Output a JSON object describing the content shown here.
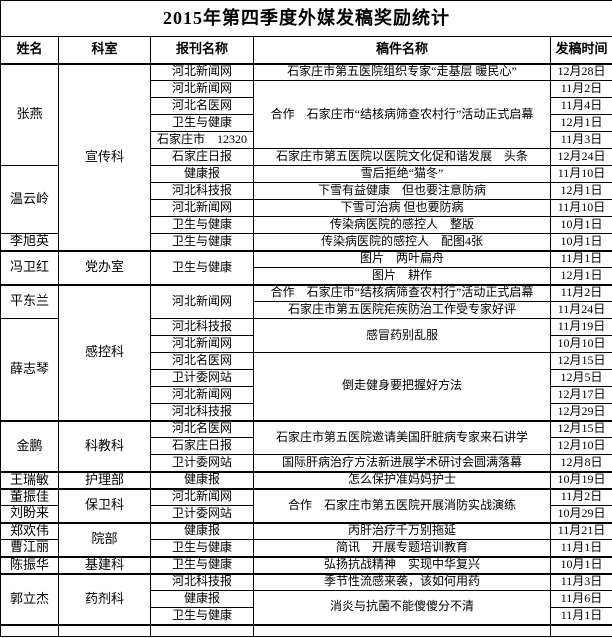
{
  "title": "2015年第四季度外媒发稿奖励统计",
  "table": {
    "columns": [
      {
        "key": "name",
        "label": "姓名"
      },
      {
        "key": "dept",
        "label": "科室"
      },
      {
        "key": "publication",
        "label": "报刊名称"
      },
      {
        "key": "article",
        "label": "稿件名称"
      },
      {
        "key": "date",
        "label": "发稿时间"
      }
    ],
    "rows": [
      {
        "group_start": true,
        "cells": [
          {
            "c": 0,
            "t": "张燕",
            "rs": 6
          },
          {
            "c": 1,
            "t": "宣传科",
            "rs": 11
          },
          {
            "c": 2,
            "t": "河北新闻网"
          },
          {
            "c": 3,
            "t": "石家庄市第五医院组织专家“走基层 暖民心”"
          },
          {
            "c": 4,
            "t": "12月28日"
          }
        ]
      },
      {
        "cells": [
          {
            "c": 2,
            "t": "河北新闻网"
          },
          {
            "c": 3,
            "t": "合作　石家庄市“结核病筛查农村行”活动正式启幕",
            "rs": 4
          },
          {
            "c": 4,
            "t": "11月2日"
          }
        ]
      },
      {
        "cells": [
          {
            "c": 2,
            "t": "河北名医网"
          },
          {
            "c": 4,
            "t": "11月4日"
          }
        ]
      },
      {
        "cells": [
          {
            "c": 2,
            "t": "卫生与健康"
          },
          {
            "c": 4,
            "t": "12月1日"
          }
        ]
      },
      {
        "cells": [
          {
            "c": 2,
            "t": "石家庄市　12320"
          },
          {
            "c": 4,
            "t": "11月3日"
          }
        ]
      },
      {
        "cells": [
          {
            "c": 2,
            "t": "石家庄日报"
          },
          {
            "c": 3,
            "t": "石家庄市第五医院以医院文化促和谐发展　头条"
          },
          {
            "c": 4,
            "t": "12月24日"
          }
        ]
      },
      {
        "cells": [
          {
            "c": 0,
            "t": "温云岭",
            "rs": 4
          },
          {
            "c": 2,
            "t": "健康报"
          },
          {
            "c": 3,
            "t": "雪后拒绝“猫冬”"
          },
          {
            "c": 4,
            "t": "11月10日"
          }
        ]
      },
      {
        "cells": [
          {
            "c": 2,
            "t": "河北科技报"
          },
          {
            "c": 3,
            "t": "下雪有益健康　但也要注意防病"
          },
          {
            "c": 4,
            "t": "12月1日"
          }
        ]
      },
      {
        "cells": [
          {
            "c": 2,
            "t": "河北新闻网"
          },
          {
            "c": 3,
            "t": "下雪可治病 但也要防病"
          },
          {
            "c": 4,
            "t": "11月10日"
          }
        ]
      },
      {
        "cells": [
          {
            "c": 2,
            "t": "卫生与健康"
          },
          {
            "c": 3,
            "t": "传染病医院的感控人　整版"
          },
          {
            "c": 4,
            "t": "10月1日"
          }
        ]
      },
      {
        "cells": [
          {
            "c": 0,
            "t": "李旭英"
          },
          {
            "c": 2,
            "t": "卫生与健康"
          },
          {
            "c": 3,
            "t": "传染病医院的感控人　配图4张"
          },
          {
            "c": 4,
            "t": "10月1日"
          }
        ]
      },
      {
        "group_start": true,
        "cells": [
          {
            "c": 0,
            "t": "冯卫红",
            "rs": 2
          },
          {
            "c": 1,
            "t": "党办室",
            "rs": 2
          },
          {
            "c": 2,
            "t": "卫生与健康",
            "rs": 2
          },
          {
            "c": 3,
            "t": "图片　两叶扁舟"
          },
          {
            "c": 4,
            "t": "11月1日"
          }
        ]
      },
      {
        "cells": [
          {
            "c": 3,
            "t": "图片　耕作"
          },
          {
            "c": 4,
            "t": "12月1日"
          }
        ]
      },
      {
        "group_start": true,
        "cells": [
          {
            "c": 0,
            "t": "平东兰",
            "rs": 2
          },
          {
            "c": 1,
            "t": "感控科",
            "rs": 8
          },
          {
            "c": 2,
            "t": "河北新闻网",
            "rs": 2
          },
          {
            "c": 3,
            "t": "合作　石家庄市“结核病筛查农村行”活动正式启幕"
          },
          {
            "c": 4,
            "t": "11月2日"
          }
        ]
      },
      {
        "cells": [
          {
            "c": 3,
            "t": "石家庄市第五医院疟疾防治工作受专家好评"
          },
          {
            "c": 4,
            "t": "11月24日"
          }
        ]
      },
      {
        "cells": [
          {
            "c": 0,
            "t": "薛志琴",
            "rs": 6
          },
          {
            "c": 2,
            "t": "河北科技报"
          },
          {
            "c": 3,
            "t": "感冒药别乱服",
            "rs": 2
          },
          {
            "c": 4,
            "t": "11月19日"
          }
        ]
      },
      {
        "cells": [
          {
            "c": 2,
            "t": "河北新闻网"
          },
          {
            "c": 4,
            "t": "10月10日"
          }
        ]
      },
      {
        "cells": [
          {
            "c": 2,
            "t": "河北名医网"
          },
          {
            "c": 3,
            "t": "倒走健身要把握好方法",
            "rs": 4
          },
          {
            "c": 4,
            "t": "12月15日"
          }
        ]
      },
      {
        "cells": [
          {
            "c": 2,
            "t": "卫计委网站"
          },
          {
            "c": 4,
            "t": "12月5日"
          }
        ]
      },
      {
        "cells": [
          {
            "c": 2,
            "t": "河北新闻网"
          },
          {
            "c": 4,
            "t": "12月17日"
          }
        ]
      },
      {
        "cells": [
          {
            "c": 2,
            "t": "河北科技报"
          },
          {
            "c": 4,
            "t": "12月29日"
          }
        ]
      },
      {
        "group_start": true,
        "cells": [
          {
            "c": 0,
            "t": "金鹏",
            "rs": 3
          },
          {
            "c": 1,
            "t": "科教科",
            "rs": 3
          },
          {
            "c": 2,
            "t": "河北名医网"
          },
          {
            "c": 3,
            "t": "石家庄市第五医院邀请美国肝脏病专家来石讲学",
            "rs": 2
          },
          {
            "c": 4,
            "t": "12月15日"
          }
        ]
      },
      {
        "cells": [
          {
            "c": 2,
            "t": "石家庄日报"
          },
          {
            "c": 4,
            "t": "12月10日"
          }
        ]
      },
      {
        "cells": [
          {
            "c": 2,
            "t": "卫计委网站"
          },
          {
            "c": 3,
            "t": "国际肝病治疗方法新进展学术研讨会圆满落幕"
          },
          {
            "c": 4,
            "t": "12月8日"
          }
        ]
      },
      {
        "group_start": true,
        "cells": [
          {
            "c": 0,
            "t": "王瑞敏"
          },
          {
            "c": 1,
            "t": "护理部"
          },
          {
            "c": 2,
            "t": "健康报"
          },
          {
            "c": 3,
            "t": "怎么保护准妈妈护士"
          },
          {
            "c": 4,
            "t": "10月19日"
          }
        ]
      },
      {
        "group_start": true,
        "cells": [
          {
            "c": 0,
            "t": "董振佳"
          },
          {
            "c": 1,
            "t": "保卫科",
            "rs": 2
          },
          {
            "c": 2,
            "t": "河北新闻网"
          },
          {
            "c": 3,
            "t": "合作　石家庄市第五医院开展消防实战演练",
            "rs": 2
          },
          {
            "c": 4,
            "t": "11月2日"
          }
        ]
      },
      {
        "cells": [
          {
            "c": 0,
            "t": "刘盼来"
          },
          {
            "c": 2,
            "t": "卫计委网站"
          },
          {
            "c": 4,
            "t": "10月29日"
          }
        ]
      },
      {
        "group_start": true,
        "cells": [
          {
            "c": 0,
            "t": "郑欢伟"
          },
          {
            "c": 1,
            "t": "院部",
            "rs": 2
          },
          {
            "c": 2,
            "t": "健康报"
          },
          {
            "c": 3,
            "t": "丙肝治疗千万别拖延"
          },
          {
            "c": 4,
            "t": "11月21日"
          }
        ]
      },
      {
        "cells": [
          {
            "c": 0,
            "t": "曹江丽"
          },
          {
            "c": 2,
            "t": "卫生与健康"
          },
          {
            "c": 3,
            "t": "简讯　开展专题培训教育"
          },
          {
            "c": 4,
            "t": "11月1日"
          }
        ]
      },
      {
        "group_start": true,
        "cells": [
          {
            "c": 0,
            "t": "陈振华"
          },
          {
            "c": 1,
            "t": "基建科"
          },
          {
            "c": 2,
            "t": "卫生与健康"
          },
          {
            "c": 3,
            "t": "弘扬抗战精神　实现中华复兴"
          },
          {
            "c": 4,
            "t": "10月1日"
          }
        ]
      },
      {
        "group_start": true,
        "cells": [
          {
            "c": 0,
            "t": "郭立杰",
            "rs": 3
          },
          {
            "c": 1,
            "t": "药剂科",
            "rs": 3
          },
          {
            "c": 2,
            "t": "河北科技报"
          },
          {
            "c": 3,
            "t": "季节性流感来袭，该如何用药"
          },
          {
            "c": 4,
            "t": "11月3日"
          }
        ]
      },
      {
        "cells": [
          {
            "c": 2,
            "t": "健康报"
          },
          {
            "c": 3,
            "t": "消炎与抗菌不能傻傻分不清",
            "rs": 2
          },
          {
            "c": 4,
            "t": "11月6日"
          }
        ]
      },
      {
        "cells": [
          {
            "c": 2,
            "t": "卫生与健康"
          },
          {
            "c": 4,
            "t": "11月1日"
          }
        ]
      },
      {
        "group_start": true,
        "partial": true,
        "cells": [
          {
            "c": 0,
            "t": ""
          },
          {
            "c": 1,
            "t": ""
          },
          {
            "c": 2,
            "t": ""
          },
          {
            "c": 3,
            "t": ""
          },
          {
            "c": 4,
            "t": ""
          }
        ]
      }
    ]
  }
}
